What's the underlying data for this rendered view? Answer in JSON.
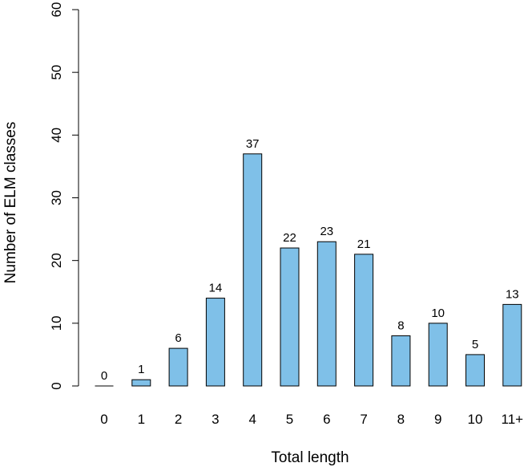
{
  "chart_data": {
    "type": "bar",
    "categories": [
      "0",
      "1",
      "2",
      "3",
      "4",
      "5",
      "6",
      "7",
      "8",
      "9",
      "10",
      "11+"
    ],
    "values": [
      0,
      1,
      6,
      14,
      37,
      22,
      23,
      21,
      8,
      10,
      5,
      13
    ],
    "data_labels": [
      "0",
      "1",
      "6",
      "14",
      "37",
      "22",
      "23",
      "21",
      "8",
      "10",
      "5",
      "13"
    ],
    "xlabel": "Total length",
    "ylabel": "Number of ELM classes",
    "ylim": [
      0,
      60
    ],
    "yticks": [
      0,
      10,
      20,
      30,
      40,
      50,
      60
    ],
    "bar_color": "#7fc0e8",
    "grid": false
  }
}
